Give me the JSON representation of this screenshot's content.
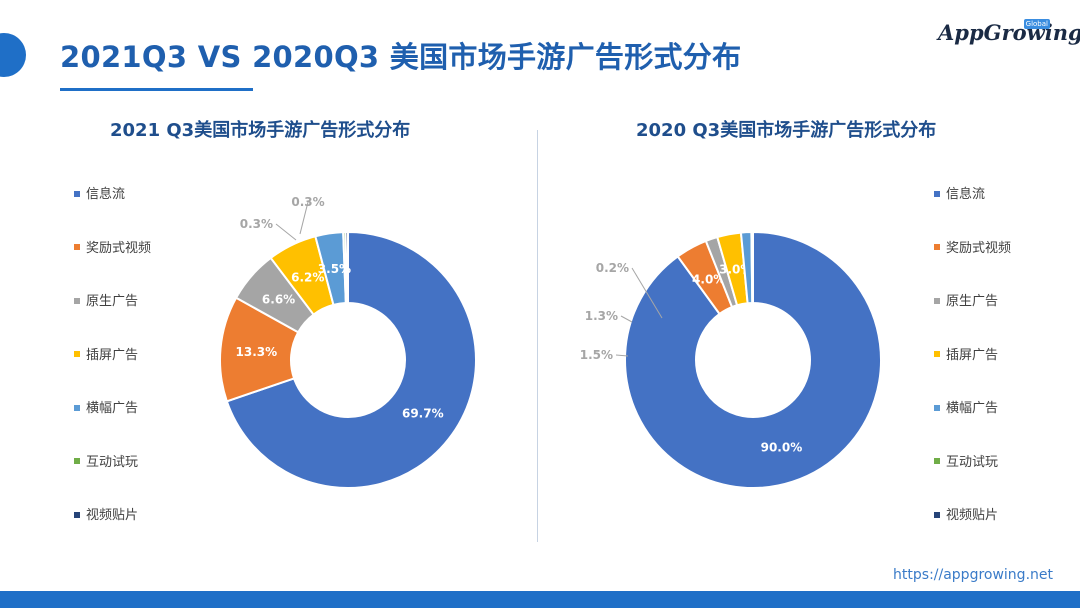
{
  "header": {
    "title": "2021Q3 VS 2020Q3 美国市场手游广告形式分布",
    "logo_text": "AppGrowing",
    "logo_badge": "Global"
  },
  "footer": {
    "url": "https://appgrowing.net"
  },
  "colors": {
    "accent": "#1f6fc7",
    "title": "#1f5fae",
    "categories": [
      "#4472c4",
      "#ed7d31",
      "#a5a5a5",
      "#ffc000",
      "#5b9bd5",
      "#70ad47",
      "#264478"
    ]
  },
  "chart_data": [
    {
      "type": "pie",
      "title": "2021 Q3美国市场手游广告形式分布",
      "categories": [
        "信息流",
        "奖励式视频",
        "原生广告",
        "插屏广告",
        "横幅广告",
        "互动试玩",
        "视频贴片"
      ],
      "values": [
        69.7,
        13.3,
        6.6,
        6.2,
        3.5,
        0.3,
        0.3
      ],
      "labels": [
        "69.7%",
        "13.3%",
        "6.6%",
        "6.2%",
        "3.5%",
        "0.3%",
        "0.3%"
      ],
      "legend": "left"
    },
    {
      "type": "pie",
      "title": "2020 Q3美国市场手游广告形式分布",
      "categories": [
        "信息流",
        "奖励式视频",
        "原生广告",
        "插屏广告",
        "横幅广告",
        "互动试玩",
        "视频贴片"
      ],
      "values": [
        90.0,
        4.0,
        1.5,
        3.0,
        1.3,
        0.2
      ],
      "labels": [
        "90.0%",
        "4.0%",
        "1.5%",
        "3.0%",
        "1.3%",
        "0.2%"
      ],
      "legend": "right"
    }
  ]
}
